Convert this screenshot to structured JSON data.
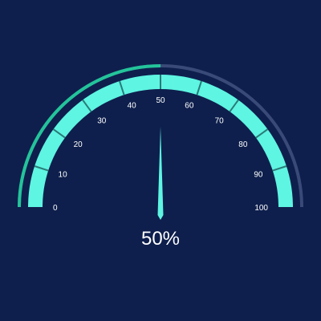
{
  "chart_data": {
    "type": "gauge",
    "min": 0,
    "max": 100,
    "value": 50,
    "ticks": [
      0,
      10,
      20,
      30,
      40,
      50,
      60,
      70,
      80,
      90,
      100
    ],
    "tick_labels": [
      "0",
      "10",
      "20",
      "30",
      "40",
      "50",
      "60",
      "70",
      "80",
      "90",
      "100"
    ],
    "readout": "50%"
  },
  "colors": {
    "background": "#0e1f4d",
    "band": "#5ef5e2",
    "progress": "#23c49a",
    "track": "#3a4a78",
    "needle": "#5ef5e2",
    "tick_line": "#2a7b78",
    "label": "#ffffff"
  }
}
